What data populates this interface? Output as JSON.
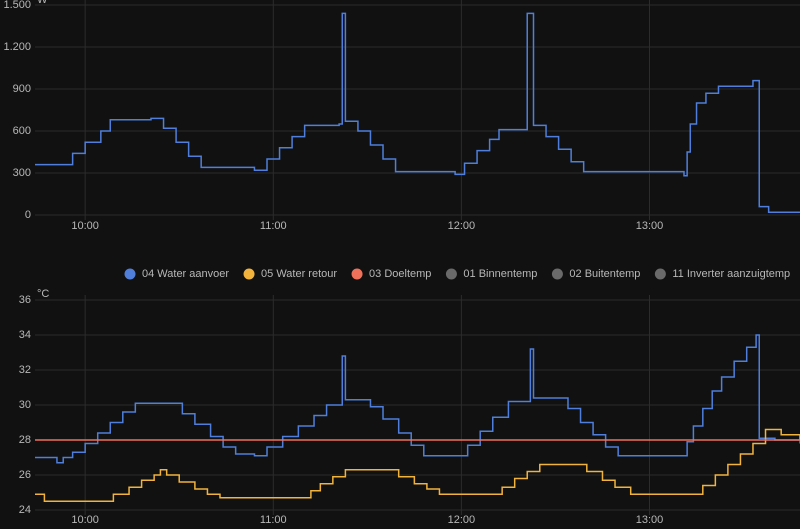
{
  "chart_data": [
    {
      "type": "line",
      "step": true,
      "unit": "W",
      "xlim": [
        "09:44",
        "13:48"
      ],
      "xticks": [
        "10:00",
        "11:00",
        "12:00",
        "13:00"
      ],
      "ylim": [
        0,
        1500
      ],
      "yticks": [
        0,
        300,
        600,
        900,
        {
          "value": 1200,
          "label": "1.200"
        },
        {
          "value": 1500,
          "label": "1.500"
        }
      ],
      "grid": true,
      "x": [
        "09:44",
        "09:51",
        "09:56",
        "10:00",
        "10:05",
        "10:08",
        "10:21",
        "10:25",
        "10:29",
        "10:33",
        "10:37",
        "10:54",
        "10:58",
        "11:02",
        "11:06",
        "11:10",
        "11:21",
        "11:22",
        "11:23",
        "11:27",
        "11:31",
        "11:35",
        "11:39",
        "11:58",
        "12:01",
        "12:05",
        "12:09",
        "12:12",
        "12:20",
        "12:21",
        "12:23",
        "12:27",
        "12:31",
        "12:35",
        "12:39",
        "13:11",
        "13:12",
        "13:13",
        "13:15",
        "13:18",
        "13:22",
        "13:33",
        "13:35",
        "13:38",
        "13:48"
      ],
      "series": [
        {
          "color": "#4f7fdb",
          "values": [
            360,
            360,
            440,
            520,
            600,
            680,
            690,
            620,
            520,
            420,
            340,
            320,
            400,
            480,
            560,
            640,
            650,
            1440,
            670,
            600,
            500,
            400,
            310,
            290,
            370,
            460,
            540,
            610,
            610,
            1440,
            640,
            560,
            470,
            380,
            310,
            280,
            450,
            650,
            800,
            870,
            920,
            960,
            60,
            20,
            20
          ]
        }
      ]
    },
    {
      "type": "line",
      "step": true,
      "unit": "°C",
      "xlim": [
        "09:44",
        "13:48"
      ],
      "xticks": [
        "10:00",
        "11:00",
        "12:00",
        "13:00"
      ],
      "ylim": [
        24,
        36
      ],
      "yticks": [
        24,
        26,
        28,
        30,
        32,
        34,
        36
      ],
      "grid": true,
      "series": [
        {
          "name": "04 Water aanvoer",
          "color": "#4f7fdb",
          "x": [
            "09:44",
            "09:51",
            "09:53",
            "09:56",
            "10:00",
            "10:04",
            "10:08",
            "10:12",
            "10:16",
            "10:27",
            "10:31",
            "10:35",
            "10:40",
            "10:44",
            "10:48",
            "10:54",
            "10:58",
            "11:03",
            "11:08",
            "11:13",
            "11:17",
            "11:21",
            "11:22",
            "11:23",
            "11:27",
            "11:31",
            "11:35",
            "11:40",
            "11:44",
            "11:48",
            "11:58",
            "12:02",
            "12:06",
            "12:10",
            "12:15",
            "12:21",
            "12:22",
            "12:23",
            "12:30",
            "12:34",
            "12:38",
            "12:42",
            "12:46",
            "12:50",
            "13:11",
            "13:12",
            "13:14",
            "13:17",
            "13:20",
            "13:23",
            "13:27",
            "13:31",
            "13:34",
            "13:35",
            "13:40",
            "13:48"
          ],
          "values": [
            27.0,
            26.7,
            27.0,
            27.3,
            27.8,
            28.4,
            29.0,
            29.6,
            30.1,
            30.1,
            29.5,
            28.9,
            28.2,
            27.6,
            27.2,
            27.1,
            27.6,
            28.2,
            28.8,
            29.4,
            30.0,
            30.0,
            32.8,
            30.3,
            30.3,
            29.9,
            29.2,
            28.4,
            27.7,
            27.1,
            27.1,
            27.7,
            28.5,
            29.3,
            30.2,
            30.2,
            33.2,
            30.4,
            30.4,
            29.8,
            29.0,
            28.3,
            27.6,
            27.1,
            27.1,
            27.9,
            28.8,
            29.8,
            30.8,
            31.6,
            32.5,
            33.3,
            34.0,
            28.1,
            28.0,
            27.8
          ]
        },
        {
          "name": "05 Water retour",
          "color": "#f2b33d",
          "x": [
            "09:44",
            "09:47",
            "10:05",
            "10:09",
            "10:14",
            "10:18",
            "10:22",
            "10:24",
            "10:26",
            "10:30",
            "10:35",
            "10:39",
            "10:43",
            "11:09",
            "11:12",
            "11:15",
            "11:19",
            "11:23",
            "11:36",
            "11:40",
            "11:45",
            "11:49",
            "11:53",
            "12:09",
            "12:13",
            "12:17",
            "12:21",
            "12:25",
            "12:36",
            "12:40",
            "12:45",
            "12:49",
            "12:54",
            "13:14",
            "13:17",
            "13:21",
            "13:25",
            "13:29",
            "13:33",
            "13:37",
            "13:42",
            "13:48"
          ],
          "values": [
            24.9,
            24.5,
            24.5,
            24.9,
            25.3,
            25.7,
            26.0,
            26.3,
            26.0,
            25.6,
            25.2,
            24.9,
            24.7,
            24.7,
            25.1,
            25.5,
            25.9,
            26.3,
            26.3,
            25.9,
            25.5,
            25.2,
            24.9,
            24.9,
            25.3,
            25.8,
            26.2,
            26.6,
            26.6,
            26.2,
            25.7,
            25.3,
            24.9,
            24.9,
            25.4,
            26.0,
            26.6,
            27.2,
            27.8,
            28.6,
            28.3,
            28.0
          ]
        },
        {
          "name": "03 Doeltemp",
          "color": "#f0715a",
          "x": [
            "09:44",
            "13:48"
          ],
          "values": [
            28,
            28
          ]
        },
        {
          "name": "01 Binnentemp",
          "color": "#777777",
          "hidden": true
        },
        {
          "name": "02 Buitentemp",
          "color": "#777777",
          "hidden": true
        },
        {
          "name": "11 Inverter aanzuigtemp",
          "color": "#777777",
          "hidden": true
        }
      ]
    }
  ]
}
